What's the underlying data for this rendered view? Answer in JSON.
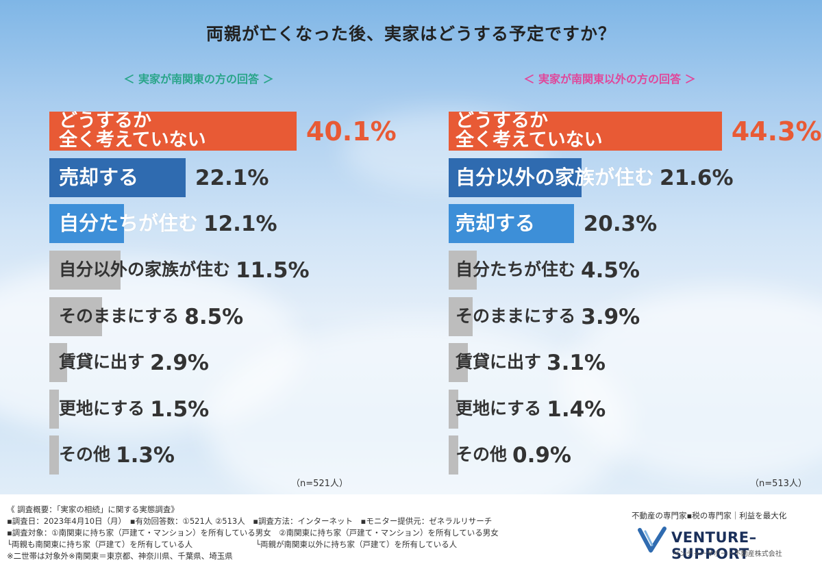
{
  "title": "両親が亡くなった後、実家はどうする予定ですか？",
  "chart_data": [
    {
      "type": "bar",
      "subtitle": "＜ 実家が南関東の方の回答 ＞",
      "n_label": "（n=521人）",
      "categories": [
        "どうするか\n全く考えていない",
        "売却する",
        "自分たちが住む",
        "自分以外の家族が住む",
        "そのままにする",
        "賃貸に出す",
        "更地にする",
        "その他"
      ],
      "values": [
        40.1,
        22.1,
        12.1,
        11.5,
        8.5,
        2.9,
        1.5,
        1.3
      ],
      "value_labels": [
        "40.1%",
        "22.1%",
        "12.1%",
        "11.5%",
        "8.5%",
        "2.9%",
        "1.5%",
        "1.3%"
      ]
    },
    {
      "type": "bar",
      "subtitle": "＜ 実家が南関東以外の方の回答 ＞",
      "n_label": "（n=513人）",
      "categories": [
        "どうするか\n全く考えていない",
        "自分以外の家族が住む",
        "売却する",
        "自分たちが住む",
        "そのままにする",
        "賃貸に出す",
        "更地にする",
        "その他"
      ],
      "values": [
        44.3,
        21.6,
        20.3,
        4.5,
        3.9,
        3.1,
        1.4,
        0.9
      ],
      "value_labels": [
        "44.3%",
        "21.6%",
        "20.3%",
        "4.5%",
        "3.9%",
        "3.1%",
        "1.4%",
        "0.9%"
      ]
    }
  ],
  "colors": {
    "rank1": "#e85a35",
    "rank2": "#2f6bb0",
    "rank3": "#3d8fd8",
    "other": "#bdbdbd"
  },
  "footer": {
    "lines": [
      "《 調査概要：「実家の相続」に関する実態調査》",
      "▪調査日：2023年4月10日（月）　▪有効回答数：①521人 ②513人　▪調査方法：インターネット　▪モニター提供元：ゼネラルリサーチ",
      "▪調査対象：①南関東に持ち家（戸建て・マンション）を所有している男女　②南関東に持ち家（戸建て・マンション）を所有している男女",
      "└両親も南関東に持ち家（戸建て）を所有している人　　　　　　　　└両親が南関東以外に持ち家（戸建て）を所有している人",
      "※二世帯は対象外※南関東＝東京都、神奈川県、千葉県、埼玉県"
    ],
    "tagline": "不動産の専門家▪税の専門家｜利益を最大化",
    "logo_text": "VENTURE–SUPPORT",
    "logo_sub": "ベンチャーサポート不動産株式会社"
  }
}
